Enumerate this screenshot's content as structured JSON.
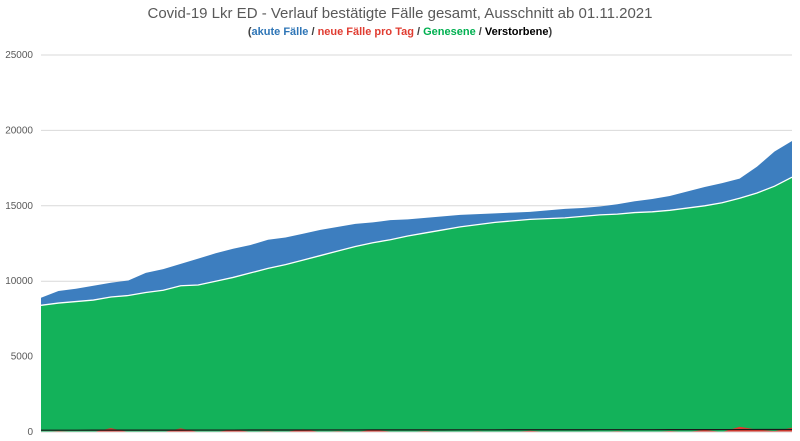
{
  "chart_data": {
    "type": "area",
    "title": "Covid-19 Lkr ED - Verlauf bestätigte Fälle gesamt, Ausschnitt ab 01.11.2021",
    "legend": {
      "open": "(",
      "close": ")",
      "separator": " / ",
      "items": [
        {
          "label": "akute Fälle",
          "color": "#2e75b6"
        },
        {
          "label": "neue Fälle pro Tag",
          "color": "#e03c31"
        },
        {
          "label": "Genesene",
          "color": "#00b050"
        },
        {
          "label": "Verstorbene",
          "color": "#000000"
        }
      ]
    },
    "ylim": [
      0,
      25000
    ],
    "yticks": [
      "0",
      "5000",
      "10000",
      "15000",
      "20000",
      "25000"
    ],
    "grid": true,
    "colors": {
      "akute": "#3d7ebf",
      "genesene": "#13b25a",
      "neue": "#e03c31",
      "verstorbene": "#1a1a1a"
    },
    "series": [
      {
        "name": "Genesene",
        "values": [
          8400,
          8550,
          8650,
          8750,
          8950,
          9050,
          9250,
          9400,
          9700,
          9750,
          10000,
          10250,
          10550,
          10850,
          11100,
          11400,
          11700,
          12000,
          12300,
          12550,
          12750,
          13000,
          13200,
          13400,
          13600,
          13750,
          13900,
          14000,
          14100,
          14150,
          14200,
          14300,
          14400,
          14450,
          14550,
          14600,
          14700,
          14850,
          15000,
          15200,
          15500,
          15850,
          16300,
          16900
        ]
      },
      {
        "name": "akute Fälle",
        "values": [
          8900,
          9350,
          9500,
          9700,
          9900,
          10050,
          10550,
          10800,
          11150,
          11500,
          11850,
          12150,
          12400,
          12750,
          12900,
          13150,
          13400,
          13600,
          13800,
          13900,
          14050,
          14100,
          14200,
          14300,
          14400,
          14450,
          14500,
          14550,
          14600,
          14700,
          14800,
          14850,
          14950,
          15100,
          15300,
          15450,
          15650,
          15950,
          16250,
          16500,
          16800,
          17600,
          18600,
          19300
        ]
      },
      {
        "name": "neue Fälle pro Tag",
        "values": [
          0,
          60,
          20,
          0,
          260,
          0,
          40,
          0,
          240,
          10,
          0,
          160,
          20,
          60,
          0,
          180,
          0,
          60,
          0,
          140,
          30,
          0,
          70,
          0,
          0,
          50,
          0,
          0,
          80,
          0,
          20,
          0,
          0,
          60,
          0,
          0,
          70,
          0,
          140,
          0,
          350,
          160,
          60,
          280
        ]
      },
      {
        "name": "Verstorbene",
        "values": [
          120,
          120,
          120,
          122,
          122,
          123,
          124,
          125,
          126,
          127,
          128,
          130,
          131,
          132,
          133,
          135,
          136,
          137,
          138,
          139,
          140,
          141,
          142,
          143,
          144,
          145,
          146,
          147,
          148,
          149,
          150,
          151,
          152,
          153,
          154,
          155,
          156,
          157,
          158,
          160,
          162,
          164,
          166,
          168
        ]
      }
    ]
  }
}
